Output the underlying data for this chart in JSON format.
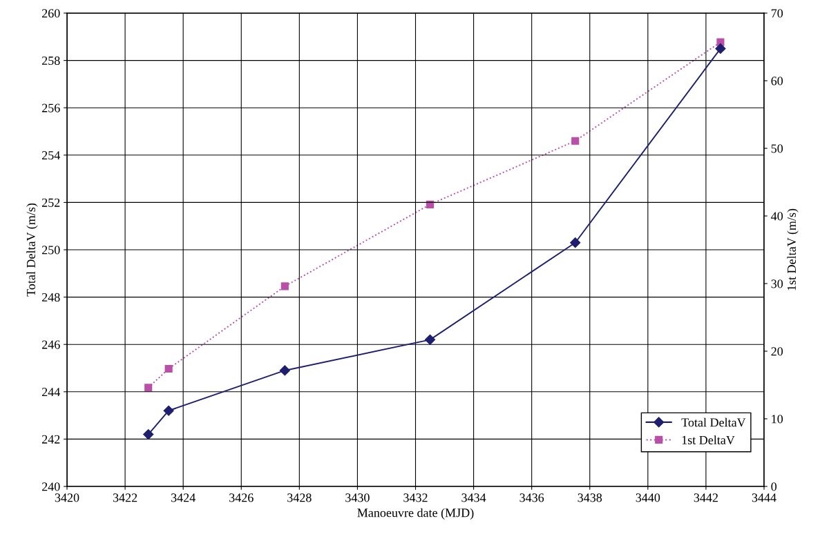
{
  "chart_data": {
    "type": "line",
    "xlabel": "Manoeuvre date (MJD)",
    "ylabel": "Total DeltaV (m/s)",
    "y2label": "1st DeltaV (m/s)",
    "x": [
      3422.8,
      3423.5,
      3427.5,
      3432.5,
      3437.5,
      3442.5
    ],
    "series": [
      {
        "name": "Total DeltaV",
        "color": "#1f1f70",
        "values": [
          242.2,
          243.2,
          244.9,
          246.2,
          250.3,
          258.5
        ],
        "marker": "diamond",
        "line_style": "solid"
      },
      {
        "name": "1st DeltaV",
        "color": "#b94fa8",
        "values": [
          14.6,
          17.4,
          29.6,
          41.7,
          51.1,
          65.7
        ],
        "marker": "square",
        "line_style": "dotted",
        "axis": "y2"
      }
    ],
    "xlim": [
      3420,
      3444
    ],
    "xticks": [
      3420,
      3422,
      3424,
      3426,
      3428,
      3430,
      3432,
      3434,
      3436,
      3438,
      3440,
      3442,
      3444
    ],
    "ylim": [
      240,
      260
    ],
    "yticks": [
      240,
      242,
      244,
      246,
      248,
      250,
      252,
      254,
      256,
      258,
      260
    ],
    "y2lim": [
      0,
      70
    ],
    "y2ticks": [
      0,
      10,
      20,
      30,
      40,
      50,
      60,
      70
    ],
    "grid": true,
    "legend": "bottom right"
  }
}
